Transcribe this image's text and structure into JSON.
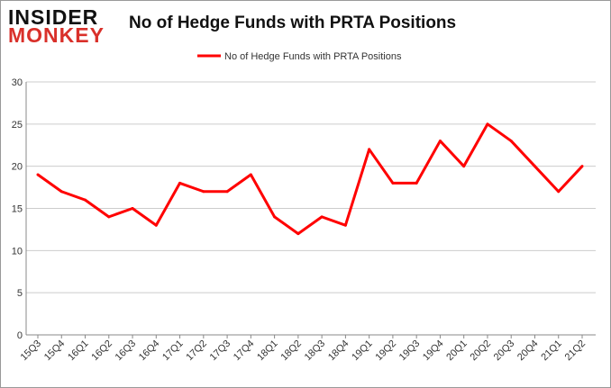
{
  "logo": {
    "line1": "INSIDER",
    "line2": "MONKEY"
  },
  "chart_data": {
    "type": "line",
    "title": "No of Hedge Funds with PRTA Positions",
    "xlabel": "",
    "ylabel": "",
    "ylim": [
      0,
      30
    ],
    "yticks": [
      0,
      5,
      10,
      15,
      20,
      25,
      30
    ],
    "grid": true,
    "legend": "top-center",
    "categories": [
      "15Q3",
      "15Q4",
      "16Q1",
      "16Q2",
      "16Q3",
      "16Q4",
      "17Q1",
      "17Q2",
      "17Q3",
      "17Q4",
      "18Q1",
      "18Q2",
      "18Q3",
      "18Q4",
      "19Q1",
      "19Q2",
      "19Q3",
      "19Q4",
      "20Q1",
      "20Q2",
      "20Q3",
      "20Q4",
      "21Q1",
      "21Q2"
    ],
    "series": [
      {
        "name": "No of Hedge Funds with PRTA Positions",
        "color": "#ff0000",
        "values": [
          19,
          17,
          16,
          14,
          15,
          13,
          18,
          17,
          17,
          19,
          14,
          12,
          14,
          13,
          22,
          18,
          18,
          23,
          20,
          25,
          23,
          20,
          17,
          20
        ]
      }
    ]
  }
}
